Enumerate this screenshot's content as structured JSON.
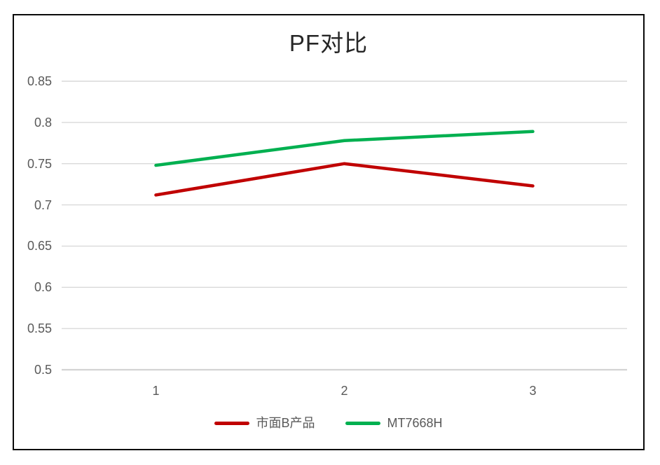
{
  "frame": {
    "border_color": "#0a0a0a",
    "background_color": "#ffffff"
  },
  "chart_data": {
    "type": "line",
    "title": "PF对比",
    "categories": [
      "1",
      "2",
      "3"
    ],
    "series": [
      {
        "name": "市面B产品",
        "color": "#c00000",
        "values": [
          0.712,
          0.75,
          0.723
        ]
      },
      {
        "name": "MT7668H",
        "color": "#00b050",
        "values": [
          0.748,
          0.778,
          0.789
        ]
      }
    ],
    "xlabel": "",
    "ylabel": "",
    "ylim": [
      0.5,
      0.85
    ],
    "yticks": [
      0.5,
      0.55,
      0.6,
      0.65,
      0.7,
      0.75,
      0.8,
      0.85
    ],
    "ytick_labels": [
      "0.5",
      "0.55",
      "0.6",
      "0.65",
      "0.7",
      "0.75",
      "0.8",
      "0.85"
    ],
    "grid": true,
    "legend_position": "bottom",
    "style": {
      "grid_color": "#d9d9d9",
      "axis_line_color": "#d3d3d3",
      "tick_text_color": "#595959",
      "title_color": "#262626",
      "line_width": 4.5
    }
  }
}
